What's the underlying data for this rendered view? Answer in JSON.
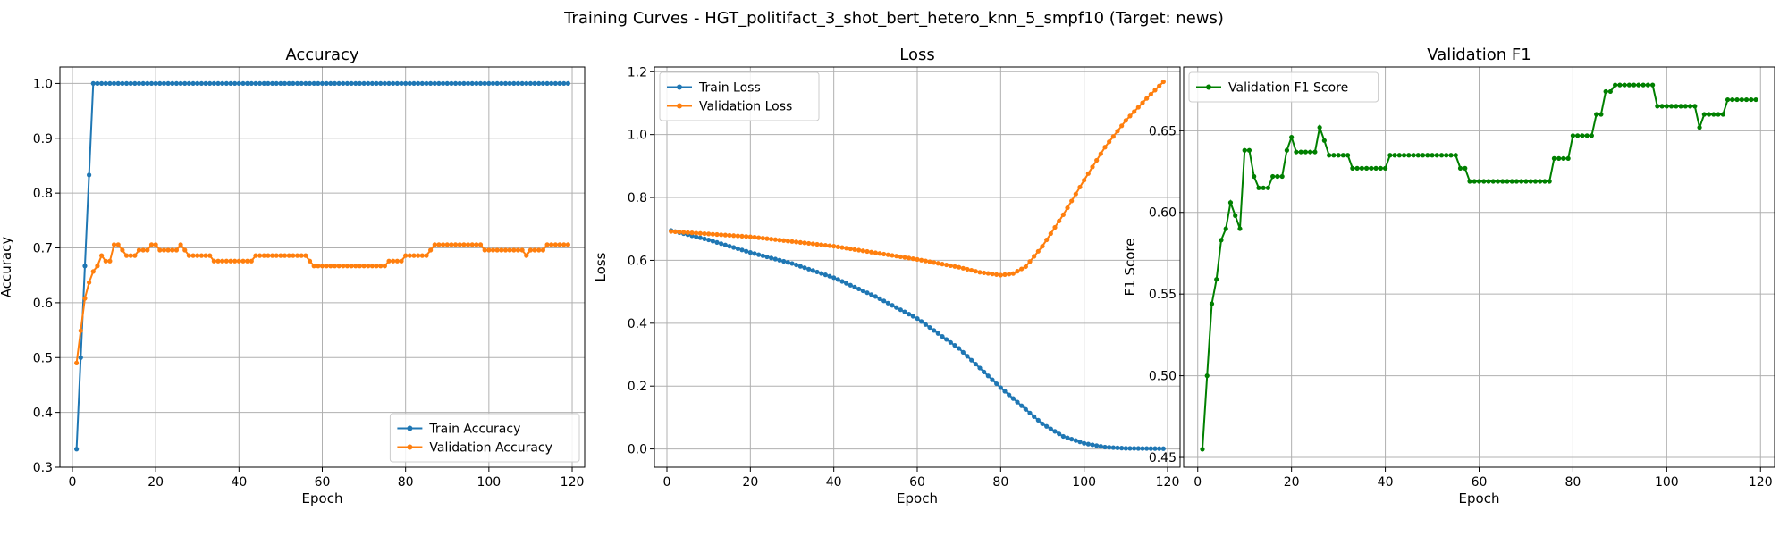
{
  "suptitle": "Training Curves - HGT_politifact_3_shot_bert_hetero_knn_5_smpf10 (Target: news)",
  "colors": {
    "train": "#1f77b4",
    "validation": "#ff7f0e",
    "f1": "#008000"
  },
  "chart_data": [
    {
      "id": "accuracy",
      "type": "line",
      "title": "Accuracy",
      "xlabel": "Epoch",
      "ylabel": "Accuracy",
      "xlim": [
        -3,
        123
      ],
      "ylim": [
        0.3,
        1.03
      ],
      "xticks": [
        0,
        20,
        40,
        60,
        80,
        100,
        120
      ],
      "yticks": [
        0.3,
        0.4,
        0.5,
        0.6,
        0.7,
        0.8,
        0.9,
        1.0
      ],
      "ytick_decimals": 1,
      "grid": true,
      "legend": "lower-right",
      "series": [
        {
          "name": "Train Accuracy",
          "color": "#1f77b4",
          "x": [
            1,
            2,
            3,
            4,
            5,
            119
          ],
          "y": [
            0.333,
            0.5,
            0.667,
            0.833,
            1.0,
            1.0
          ],
          "step": 1
        },
        {
          "name": "Validation Accuracy",
          "color": "#ff7f0e",
          "segments": [
            [
              1,
              0.49
            ],
            [
              2,
              0.549
            ],
            [
              3,
              0.608
            ],
            [
              4,
              0.637
            ],
            [
              5,
              0.657
            ],
            [
              6,
              0.667
            ],
            [
              7,
              0.686
            ],
            [
              8,
              0.676
            ],
            [
              9,
              0.676
            ],
            [
              10,
              0.706
            ],
            [
              11,
              0.706
            ],
            [
              12,
              0.696
            ],
            [
              13,
              0.686
            ],
            [
              14,
              0.686
            ],
            [
              15,
              0.686
            ],
            [
              16,
              0.696
            ],
            [
              17,
              0.696
            ],
            [
              18,
              0.696
            ],
            [
              19,
              0.706
            ],
            [
              20,
              0.706
            ],
            [
              21,
              0.696
            ],
            [
              25,
              0.696
            ],
            [
              26,
              0.706
            ],
            [
              27,
              0.696
            ],
            [
              28,
              0.686
            ],
            [
              33,
              0.686
            ],
            [
              34,
              0.676
            ],
            [
              43,
              0.676
            ],
            [
              44,
              0.686
            ],
            [
              56,
              0.686
            ],
            [
              57,
              0.676
            ],
            [
              58,
              0.667
            ],
            [
              75,
              0.667
            ],
            [
              76,
              0.676
            ],
            [
              79,
              0.676
            ],
            [
              80,
              0.686
            ],
            [
              85,
              0.686
            ],
            [
              86,
              0.696
            ],
            [
              87,
              0.706
            ],
            [
              98,
              0.706
            ],
            [
              99,
              0.696
            ],
            [
              108,
              0.696
            ],
            [
              109,
              0.686
            ],
            [
              110,
              0.696
            ],
            [
              113,
              0.696
            ],
            [
              114,
              0.706
            ],
            [
              119,
              0.706
            ]
          ]
        }
      ]
    },
    {
      "id": "loss",
      "type": "line",
      "title": "Loss",
      "xlabel": "Epoch",
      "ylabel": "Loss",
      "xlim": [
        -3,
        123
      ],
      "ylim": [
        -0.058,
        1.215
      ],
      "xticks": [
        0,
        20,
        40,
        60,
        80,
        100,
        120
      ],
      "yticks": [
        0.0,
        0.2,
        0.4,
        0.6,
        0.8,
        1.0,
        1.2
      ],
      "ytick_decimals": 1,
      "grid": true,
      "legend": "upper-left",
      "series": [
        {
          "name": "Train Loss",
          "color": "#1f77b4",
          "segments": [
            [
              1,
              0.695
            ],
            [
              10,
              0.665
            ],
            [
              20,
              0.625
            ],
            [
              30,
              0.59
            ],
            [
              40,
              0.545
            ],
            [
              50,
              0.485
            ],
            [
              60,
              0.415
            ],
            [
              70,
              0.32
            ],
            [
              80,
              0.195
            ],
            [
              90,
              0.08
            ],
            [
              95,
              0.04
            ],
            [
              100,
              0.018
            ],
            [
              105,
              0.006
            ],
            [
              110,
              0.002
            ],
            [
              119,
              0.001
            ]
          ]
        },
        {
          "name": "Validation Loss",
          "color": "#ff7f0e",
          "segments": [
            [
              1,
              0.692
            ],
            [
              20,
              0.675
            ],
            [
              40,
              0.645
            ],
            [
              60,
              0.603
            ],
            [
              70,
              0.578
            ],
            [
              75,
              0.562
            ],
            [
              80,
              0.553
            ],
            [
              83,
              0.558
            ],
            [
              86,
              0.58
            ],
            [
              90,
              0.645
            ],
            [
              95,
              0.745
            ],
            [
              100,
              0.855
            ],
            [
              105,
              0.96
            ],
            [
              110,
              1.045
            ],
            [
              115,
              1.115
            ],
            [
              119,
              1.168
            ]
          ]
        }
      ]
    },
    {
      "id": "f1",
      "type": "line",
      "title": "Validation F1",
      "xlabel": "Epoch",
      "ylabel": "F1 Score",
      "xlim": [
        -3,
        123
      ],
      "ylim": [
        0.444,
        0.689
      ],
      "xticks": [
        0,
        20,
        40,
        60,
        80,
        100,
        120
      ],
      "yticks": [
        0.45,
        0.5,
        0.55,
        0.6,
        0.65
      ],
      "ytick_decimals": 2,
      "grid": true,
      "legend": "upper-left",
      "series": [
        {
          "name": "Validation F1 Score",
          "color": "#008000",
          "segments": [
            [
              1,
              0.455
            ],
            [
              2,
              0.5
            ],
            [
              3,
              0.544
            ],
            [
              4,
              0.559
            ],
            [
              5,
              0.583
            ],
            [
              6,
              0.59
            ],
            [
              7,
              0.606
            ],
            [
              8,
              0.598
            ],
            [
              9,
              0.59
            ],
            [
              10,
              0.638
            ],
            [
              11,
              0.638
            ],
            [
              12,
              0.622
            ],
            [
              13,
              0.615
            ],
            [
              15,
              0.615
            ],
            [
              16,
              0.622
            ],
            [
              18,
              0.622
            ],
            [
              19,
              0.638
            ],
            [
              20,
              0.646
            ],
            [
              21,
              0.637
            ],
            [
              25,
              0.637
            ],
            [
              26,
              0.652
            ],
            [
              27,
              0.644
            ],
            [
              28,
              0.635
            ],
            [
              32,
              0.635
            ],
            [
              33,
              0.627
            ],
            [
              40,
              0.627
            ],
            [
              41,
              0.635
            ],
            [
              55,
              0.635
            ],
            [
              56,
              0.627
            ],
            [
              57,
              0.627
            ],
            [
              58,
              0.619
            ],
            [
              75,
              0.619
            ],
            [
              76,
              0.633
            ],
            [
              79,
              0.633
            ],
            [
              80,
              0.647
            ],
            [
              84,
              0.647
            ],
            [
              85,
              0.66
            ],
            [
              86,
              0.66
            ],
            [
              87,
              0.674
            ],
            [
              88,
              0.674
            ],
            [
              89,
              0.678
            ],
            [
              97,
              0.678
            ],
            [
              98,
              0.665
            ],
            [
              106,
              0.665
            ],
            [
              107,
              0.652
            ],
            [
              108,
              0.66
            ],
            [
              112,
              0.66
            ],
            [
              113,
              0.669
            ],
            [
              119,
              0.669
            ]
          ]
        }
      ]
    }
  ]
}
